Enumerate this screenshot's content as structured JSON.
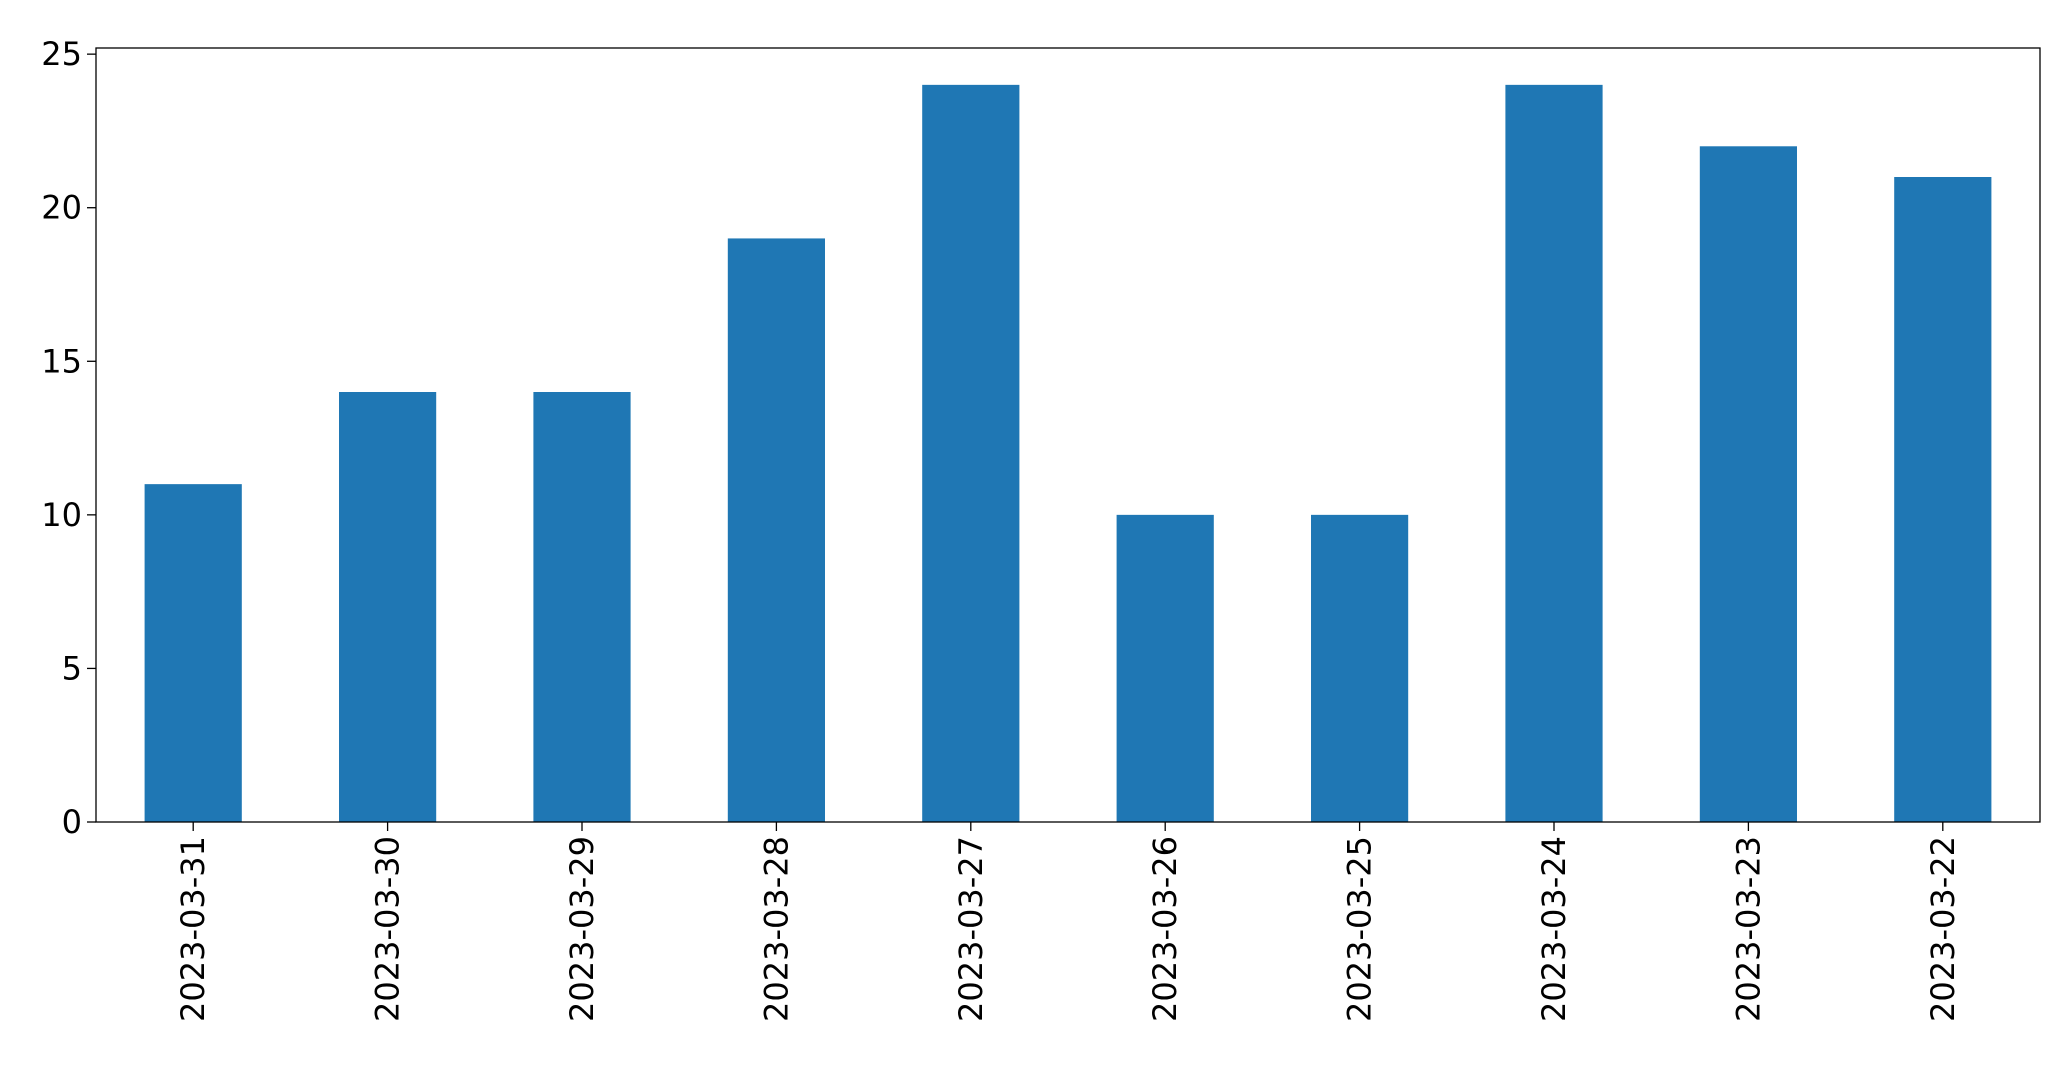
{
  "chart_data": {
    "type": "bar",
    "categories": [
      "2023-03-31",
      "2023-03-30",
      "2023-03-29",
      "2023-03-28",
      "2023-03-27",
      "2023-03-26",
      "2023-03-25",
      "2023-03-24",
      "2023-03-23",
      "2023-03-22"
    ],
    "values": [
      11,
      14,
      14,
      19,
      24,
      10,
      10,
      24,
      22,
      21
    ],
    "color": "#1f77b4",
    "ylim": [
      0,
      25.2
    ],
    "yticks": [
      0,
      5,
      10,
      15,
      20,
      25
    ],
    "grid": false
  }
}
